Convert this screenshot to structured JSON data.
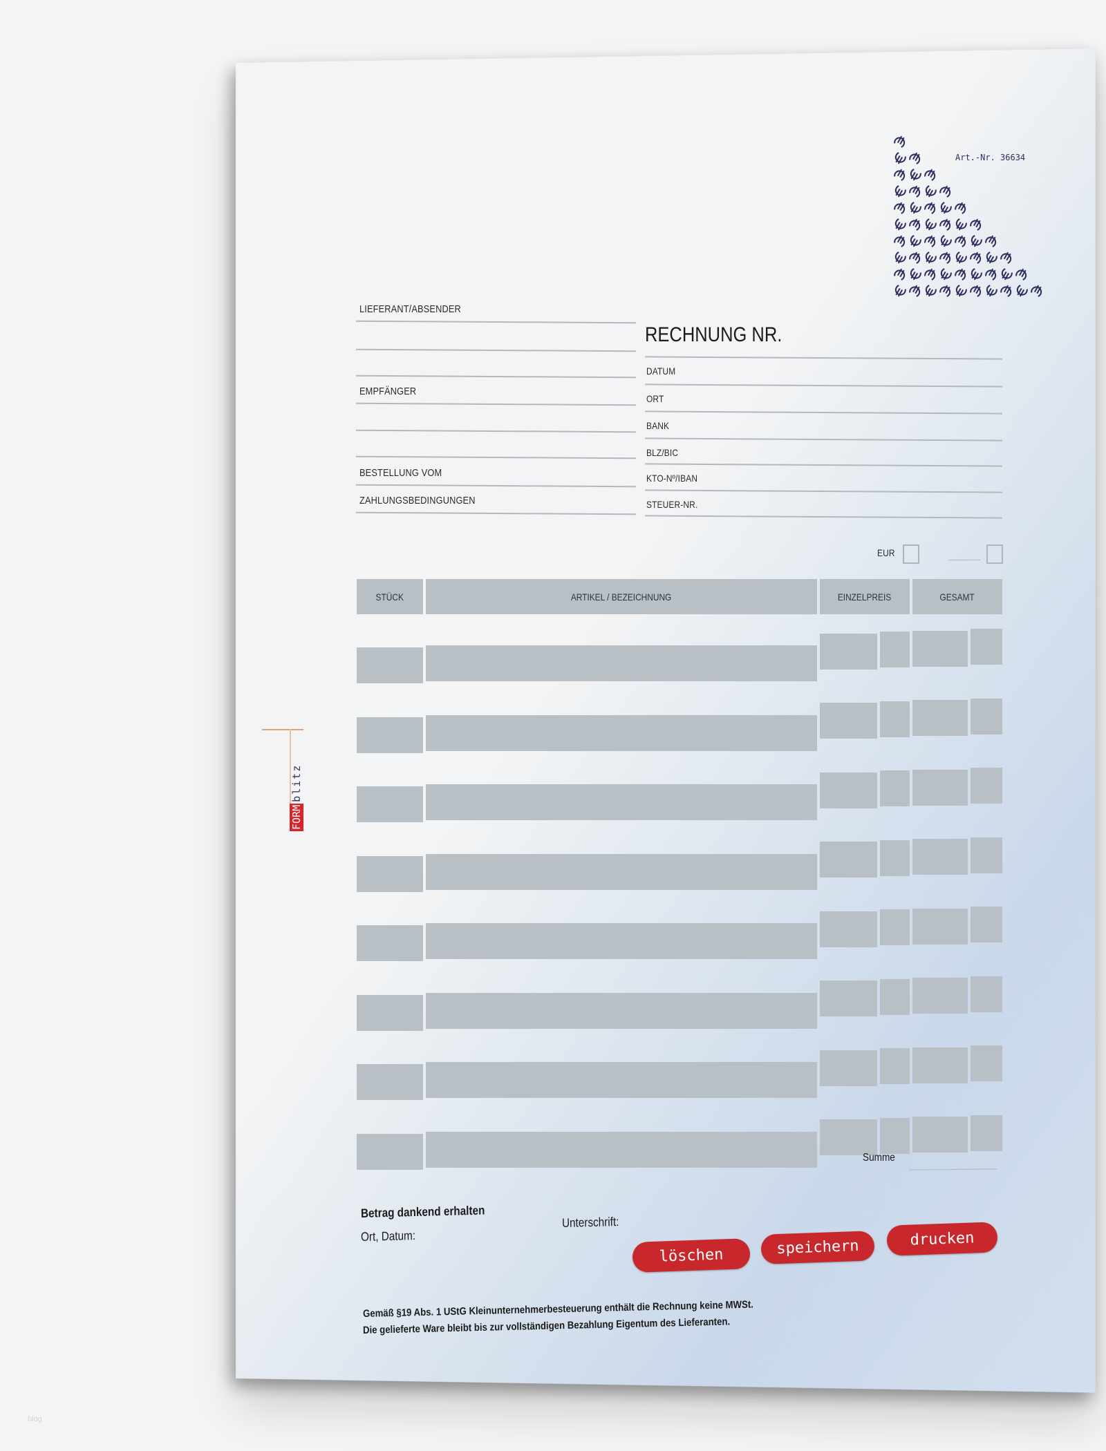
{
  "document": {
    "article_number": "Art.-Nr. 36634",
    "logo": {
      "part1": "FORM",
      "part2": "blitz",
      "color": "#d7262b"
    },
    "title": "RECHNUNG NR.",
    "left_fields": [
      {
        "label": "LIEFERANT/ABSENDER"
      },
      {
        "label": ""
      },
      {
        "label": ""
      },
      {
        "label": "EMPFÄNGER"
      },
      {
        "label": ""
      },
      {
        "label": ""
      },
      {
        "label": "BESTELLUNG VOM"
      },
      {
        "label": "ZAHLUNGSBEDINGUNGEN"
      }
    ],
    "right_fields": [
      {
        "label": "DATUM"
      },
      {
        "label": "ORT"
      },
      {
        "label": "BANK"
      },
      {
        "label": "BLZ/BIC"
      },
      {
        "label": "KTO-Nº/IBAN"
      },
      {
        "label": "STEUER-NR."
      }
    ],
    "currency": {
      "eur_label": "EUR",
      "eur_checked": false,
      "other_checked": false
    },
    "table": {
      "headers": [
        "STÜCK",
        "ARTIKEL / BEZEICHNUNG",
        "EINZELPREIS",
        "GESAMT"
      ],
      "row_count": 8
    },
    "sum_label": "Summe",
    "received_label": "Betrag dankend erhalten",
    "place_date_label": "Ort, Datum:",
    "signature_label": "Unterschrift:",
    "buttons": {
      "clear": "löschen",
      "save": "speichern",
      "print": "drucken"
    },
    "accent_color": "#c8282c",
    "footer": [
      "Gemäß §19 Abs. 1 UStG Kleinunternehmerbesteuerung enthält die Rechnung keine MWSt.",
      "Die gelieferte Ware bleibt bis zur vollständigen Bezahlung Eigentum des Lieferanten."
    ]
  },
  "watermark": "blog"
}
